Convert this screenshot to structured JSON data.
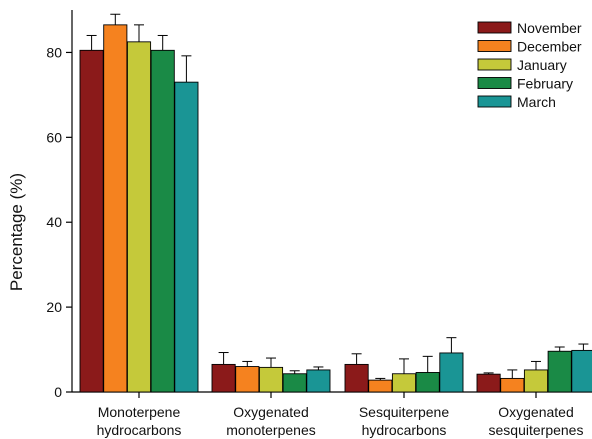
{
  "chart_data": {
    "type": "bar",
    "title": "",
    "xlabel": "",
    "ylabel": "Percentage (%)",
    "ylim": [
      0,
      90
    ],
    "yticks": [
      0,
      20,
      40,
      60,
      80
    ],
    "grid": false,
    "legend_position": "top-right",
    "categories": [
      [
        "Monoterpene",
        "hydrocarbons"
      ],
      [
        "Oxygenated",
        "monoterpenes"
      ],
      [
        "Sesquiterpene",
        "hydrocarbons"
      ],
      [
        "Oxygenated",
        "sesquiterpenes"
      ]
    ],
    "series": [
      {
        "name": "November",
        "color": "#8b1a1a",
        "values": [
          80.5,
          6.5,
          6.5,
          4.2
        ],
        "errors": [
          3.5,
          2.8,
          2.5,
          0.3
        ]
      },
      {
        "name": "December",
        "color": "#f5821f",
        "values": [
          86.5,
          6.0,
          2.8,
          3.2
        ],
        "errors": [
          2.5,
          1.2,
          0.4,
          2.0
        ]
      },
      {
        "name": "January",
        "color": "#c5c93a",
        "values": [
          82.5,
          5.8,
          4.3,
          5.2
        ],
        "errors": [
          4.0,
          2.2,
          3.5,
          2.0
        ]
      },
      {
        "name": "February",
        "color": "#1a8a46",
        "values": [
          80.5,
          4.3,
          4.6,
          9.6
        ],
        "errors": [
          3.5,
          0.7,
          3.8,
          1.0
        ]
      },
      {
        "name": "March",
        "color": "#1a9595",
        "values": [
          73.0,
          5.2,
          9.2,
          9.8
        ],
        "errors": [
          6.2,
          0.7,
          3.6,
          1.5
        ]
      }
    ]
  }
}
